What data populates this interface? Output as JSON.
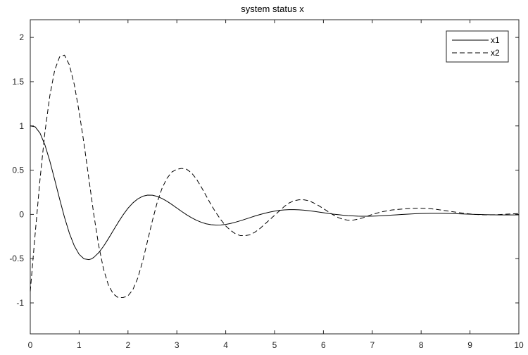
{
  "chart_data": {
    "type": "line",
    "title": "system status x",
    "xlabel": "",
    "ylabel": "",
    "xlim": [
      0,
      10
    ],
    "ylim": [
      -1.35,
      2.2
    ],
    "xticks": [
      "0",
      "1",
      "2",
      "3",
      "4",
      "5",
      "6",
      "7",
      "8",
      "9",
      "10"
    ],
    "yticks": [
      "-1",
      "-0.5",
      "0",
      "0.5",
      "1",
      "1.5",
      "2"
    ],
    "grid": false,
    "legend_position": "top-right",
    "series": [
      {
        "name": "x1",
        "style": "solid",
        "color": "#000000",
        "x": [
          0,
          0.1,
          0.2,
          0.3,
          0.4,
          0.5,
          0.6,
          0.7,
          0.8,
          0.9,
          1.0,
          1.1,
          1.2,
          1.25,
          1.3,
          1.4,
          1.5,
          1.6,
          1.7,
          1.8,
          1.9,
          2.0,
          2.1,
          2.2,
          2.3,
          2.4,
          2.5,
          2.6,
          2.7,
          2.8,
          2.9,
          3.0,
          3.1,
          3.2,
          3.3,
          3.4,
          3.5,
          3.6,
          3.7,
          3.8,
          3.9,
          4.0,
          4.1,
          4.2,
          4.3,
          4.4,
          4.5,
          4.6,
          4.7,
          4.8,
          4.9,
          5.0,
          5.1,
          5.2,
          5.3,
          5.4,
          5.5,
          5.6,
          5.7,
          5.8,
          5.9,
          6.0,
          6.1,
          6.2,
          6.3,
          6.4,
          6.5,
          6.6,
          6.7,
          6.8,
          6.9,
          7.0,
          7.1,
          7.2,
          7.3,
          7.4,
          7.5,
          7.6,
          7.7,
          7.8,
          7.9,
          8.0,
          8.1,
          8.2,
          8.3,
          8.4,
          8.5,
          8.6,
          8.7,
          8.8,
          8.9,
          9.0,
          9.1,
          9.2,
          9.3,
          9.4,
          9.5,
          9.6,
          9.7,
          9.8,
          9.9,
          10.0
        ],
        "y": [
          1.0,
          0.99,
          0.918,
          0.785,
          0.603,
          0.392,
          0.175,
          -0.032,
          -0.212,
          -0.354,
          -0.451,
          -0.502,
          -0.511,
          -0.503,
          -0.486,
          -0.433,
          -0.36,
          -0.273,
          -0.181,
          -0.09,
          -0.005,
          0.07,
          0.13,
          0.175,
          0.205,
          0.218,
          0.217,
          0.203,
          0.179,
          0.148,
          0.111,
          0.072,
          0.033,
          -0.004,
          -0.037,
          -0.066,
          -0.089,
          -0.106,
          -0.116,
          -0.12,
          -0.119,
          -0.113,
          -0.102,
          -0.088,
          -0.072,
          -0.054,
          -0.036,
          -0.018,
          -0.002,
          0.013,
          0.026,
          0.037,
          0.046,
          0.051,
          0.054,
          0.054,
          0.052,
          0.048,
          0.042,
          0.035,
          0.027,
          0.019,
          0.011,
          0.003,
          -0.003,
          -0.009,
          -0.014,
          -0.017,
          -0.02,
          -0.021,
          -0.021,
          -0.02,
          -0.018,
          -0.015,
          -0.012,
          -0.008,
          -0.005,
          -0.001,
          0.002,
          0.005,
          0.008,
          0.01,
          0.011,
          0.012,
          0.012,
          0.012,
          0.011,
          0.01,
          0.008,
          0.006,
          0.004,
          0.002,
          0.0,
          -0.001,
          -0.003,
          -0.004,
          -0.005,
          -0.006,
          -0.006,
          -0.006,
          -0.006,
          -0.005
        ]
      },
      {
        "name": "x2",
        "style": "dashed",
        "color": "#000000",
        "x": [
          0,
          0.1,
          0.2,
          0.3,
          0.4,
          0.5,
          0.6,
          0.7,
          0.8,
          0.9,
          1.0,
          1.1,
          1.2,
          1.3,
          1.4,
          1.5,
          1.6,
          1.7,
          1.8,
          1.9,
          2.0,
          2.1,
          2.2,
          2.3,
          2.4,
          2.5,
          2.6,
          2.7,
          2.8,
          2.9,
          3.0,
          3.1,
          3.2,
          3.3,
          3.4,
          3.5,
          3.6,
          3.7,
          3.8,
          3.9,
          4.0,
          4.1,
          4.2,
          4.3,
          4.4,
          4.5,
          4.6,
          4.7,
          4.8,
          4.9,
          5.0,
          5.1,
          5.2,
          5.3,
          5.4,
          5.5,
          5.6,
          5.7,
          5.8,
          5.9,
          6.0,
          6.1,
          6.2,
          6.3,
          6.4,
          6.5,
          6.6,
          6.7,
          6.8,
          6.9,
          7.0,
          7.1,
          7.2,
          7.3,
          7.4,
          7.5,
          7.6,
          7.7,
          7.8,
          7.9,
          8.0,
          8.1,
          8.2,
          8.3,
          8.4,
          8.5,
          8.6,
          8.7,
          8.8,
          8.9,
          9.0,
          9.1,
          9.2,
          9.3,
          9.4,
          9.5,
          9.6,
          9.7,
          9.8,
          9.9,
          10.0
        ],
        "y": [
          -0.87,
          -0.22,
          0.4,
          0.93,
          1.34,
          1.63,
          1.78,
          1.8,
          1.69,
          1.47,
          1.16,
          0.8,
          0.4,
          0.0,
          -0.35,
          -0.62,
          -0.8,
          -0.9,
          -0.94,
          -0.94,
          -0.92,
          -0.85,
          -0.72,
          -0.53,
          -0.3,
          -0.07,
          0.14,
          0.3,
          0.41,
          0.48,
          0.51,
          0.52,
          0.51,
          0.47,
          0.4,
          0.31,
          0.21,
          0.11,
          0.02,
          -0.06,
          -0.13,
          -0.18,
          -0.22,
          -0.24,
          -0.24,
          -0.23,
          -0.2,
          -0.16,
          -0.11,
          -0.06,
          -0.01,
          0.04,
          0.09,
          0.13,
          0.155,
          0.165,
          0.165,
          0.155,
          0.13,
          0.1,
          0.065,
          0.03,
          -0.005,
          -0.035,
          -0.055,
          -0.065,
          -0.065,
          -0.055,
          -0.04,
          -0.02,
          0.0,
          0.015,
          0.03,
          0.04,
          0.05,
          0.055,
          0.06,
          0.065,
          0.068,
          0.07,
          0.07,
          0.068,
          0.064,
          0.058,
          0.05,
          0.042,
          0.034,
          0.026,
          0.018,
          0.011,
          0.005,
          0.0,
          -0.003,
          -0.005,
          -0.005,
          -0.004,
          -0.002,
          0.001,
          0.004,
          0.007,
          0.01
        ]
      }
    ]
  }
}
